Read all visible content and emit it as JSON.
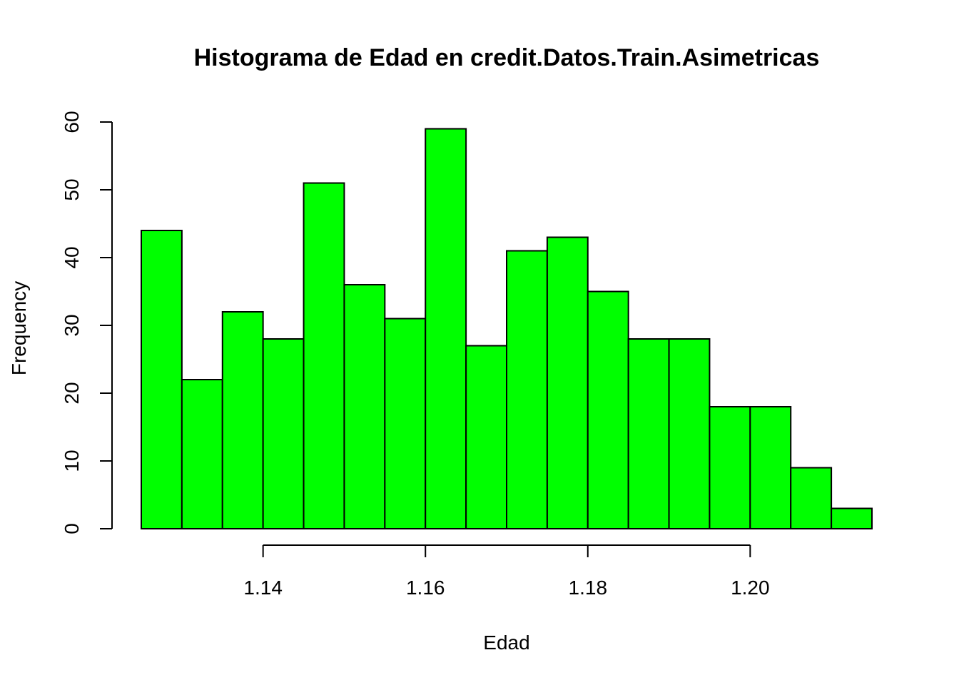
{
  "chart_data": {
    "type": "bar",
    "title": "Histograma de Edad en credit.Datos.Train.Asimetricas",
    "xlabel": "Edad",
    "ylabel": "Frequency",
    "bin_start": 1.125,
    "bin_width": 0.005,
    "values": [
      44,
      22,
      32,
      28,
      51,
      36,
      31,
      59,
      27,
      41,
      43,
      35,
      28,
      28,
      18,
      18,
      9,
      3
    ],
    "xlim": [
      1.125,
      1.215
    ],
    "ylim": [
      0,
      60
    ],
    "x_ticks": [
      {
        "value": 1.14,
        "label": "1.14"
      },
      {
        "value": 1.16,
        "label": "1.16"
      },
      {
        "value": 1.18,
        "label": "1.18"
      },
      {
        "value": 1.2,
        "label": "1.20"
      }
    ],
    "y_ticks": [
      {
        "value": 0,
        "label": "0"
      },
      {
        "value": 10,
        "label": "10"
      },
      {
        "value": 20,
        "label": "20"
      },
      {
        "value": 30,
        "label": "30"
      },
      {
        "value": 40,
        "label": "40"
      },
      {
        "value": 50,
        "label": "50"
      },
      {
        "value": 60,
        "label": "60"
      }
    ],
    "bar_color": "#00FF00",
    "grid": false,
    "legend": "none"
  }
}
